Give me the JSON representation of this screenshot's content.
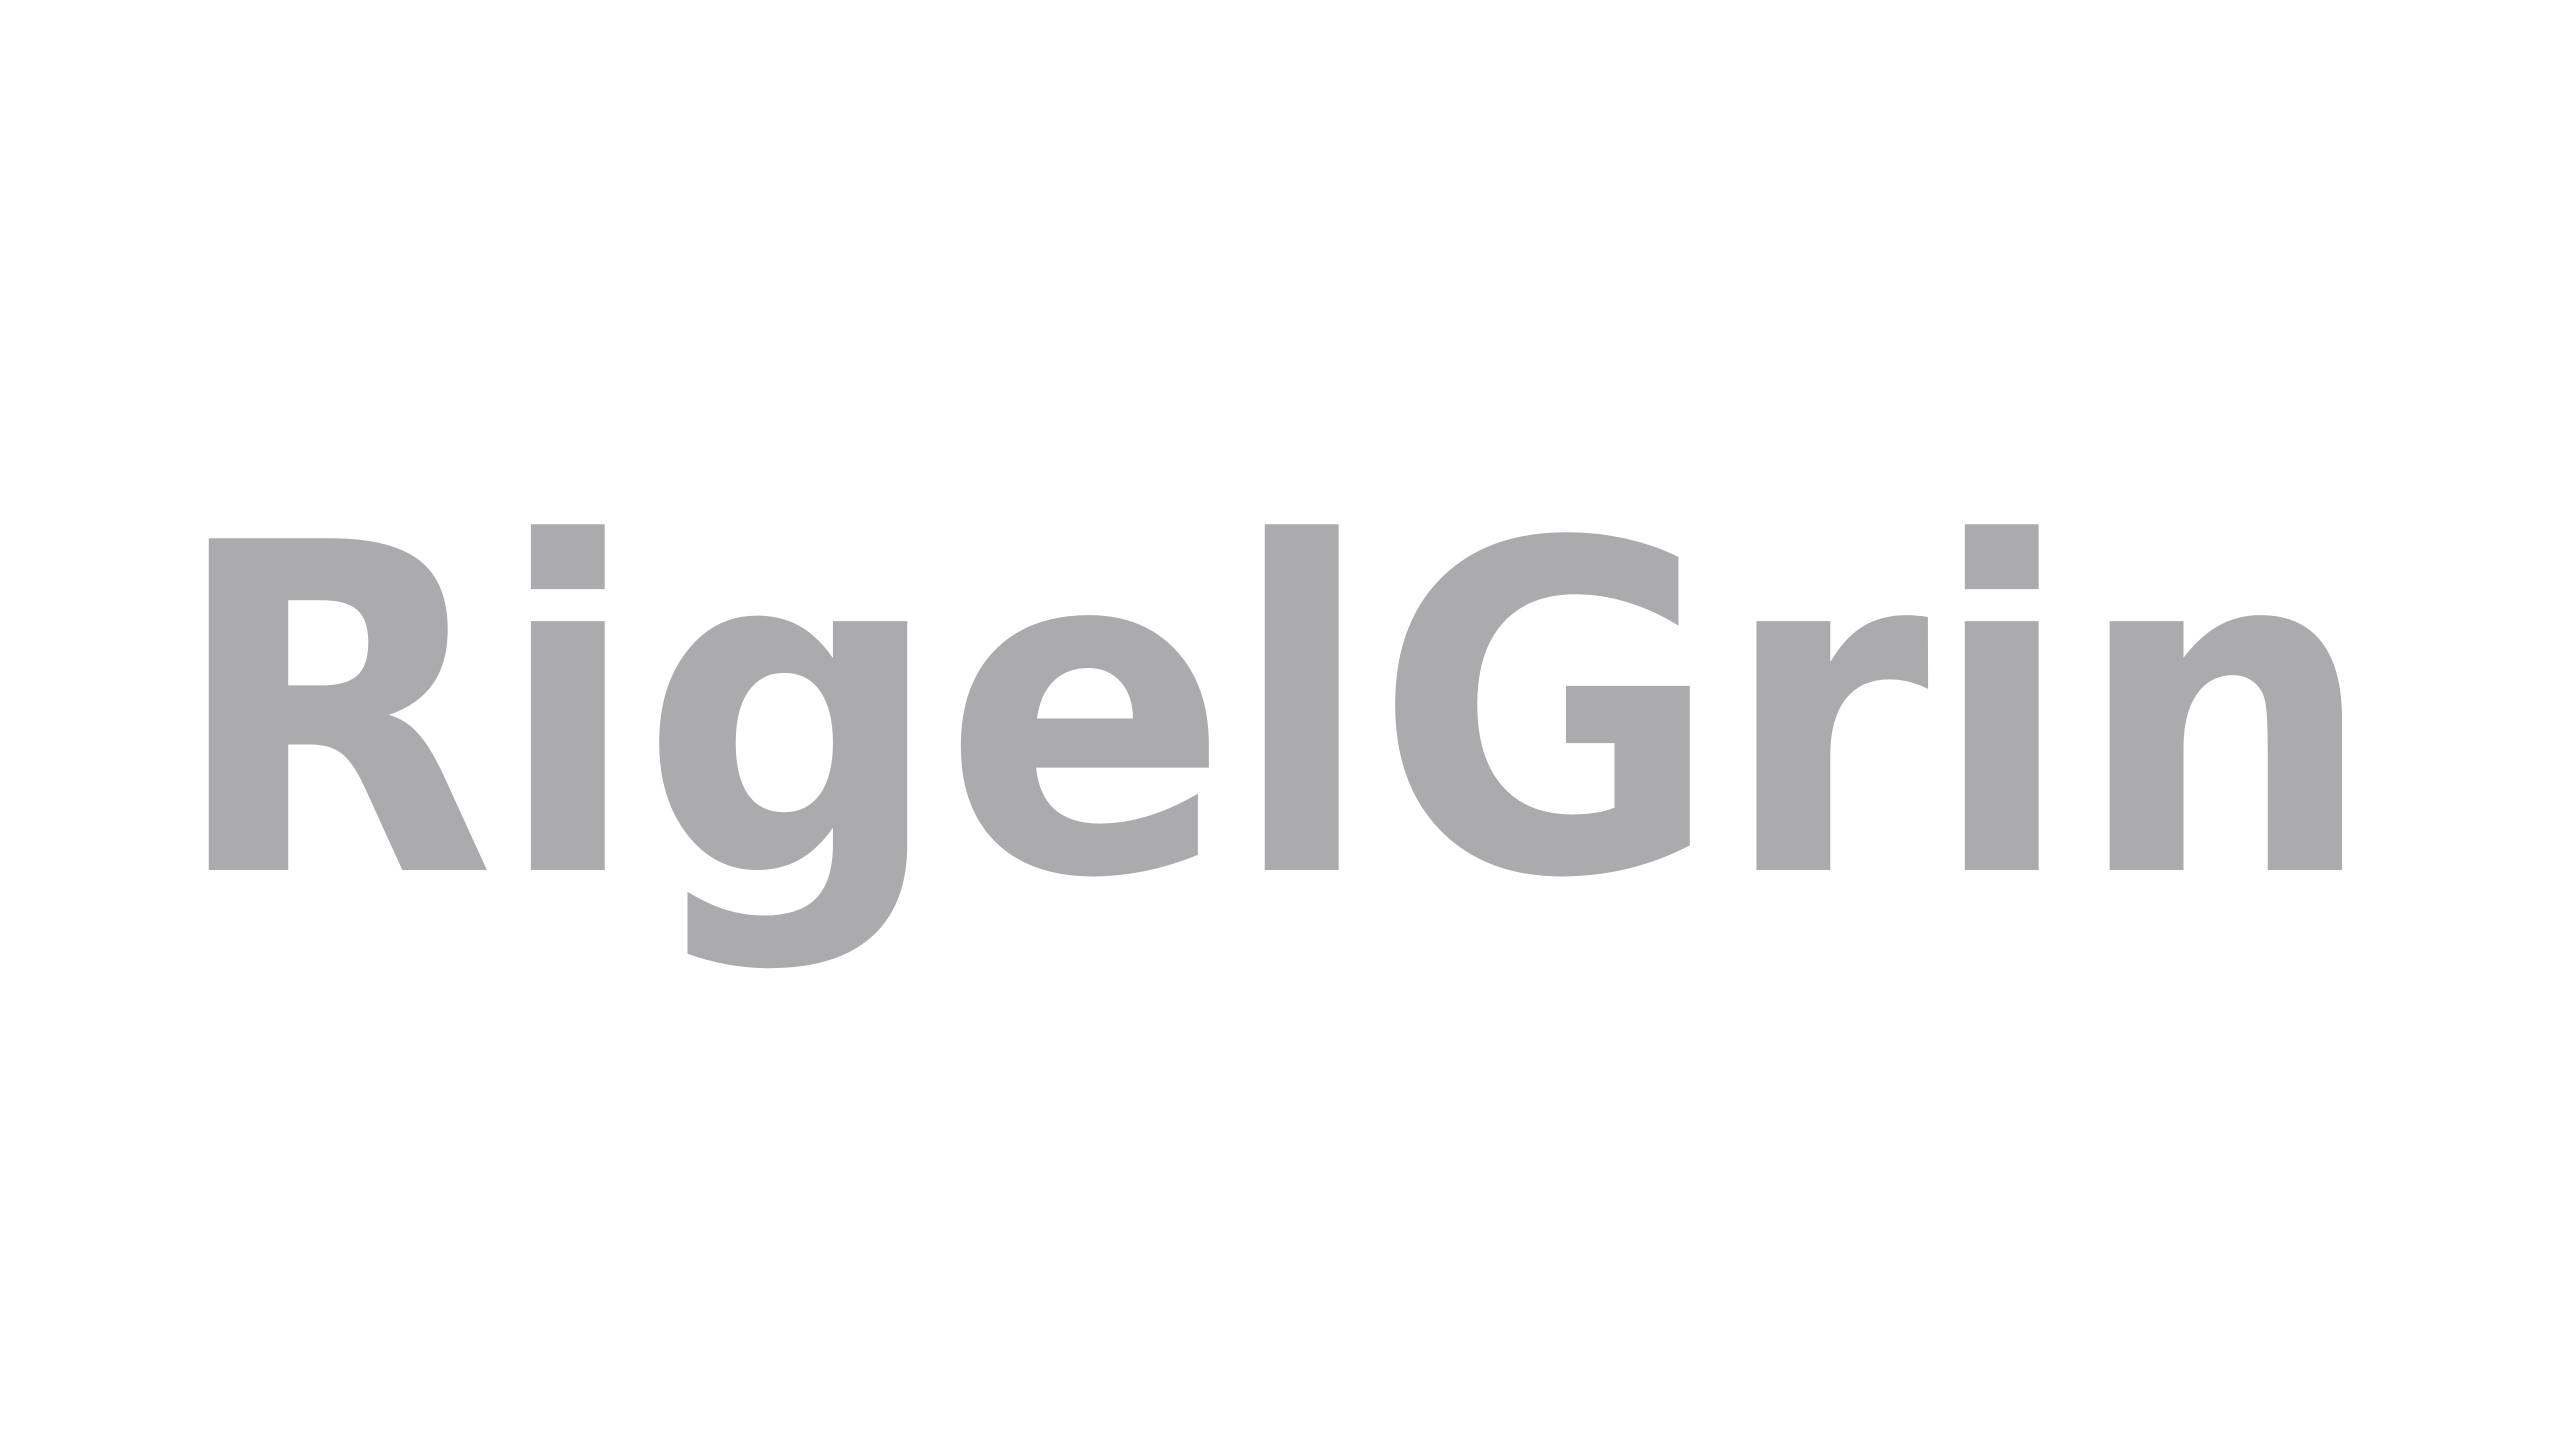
{
  "logo": {
    "text": "RigelGrin",
    "color": "#ababad",
    "background": "#ffffff"
  }
}
